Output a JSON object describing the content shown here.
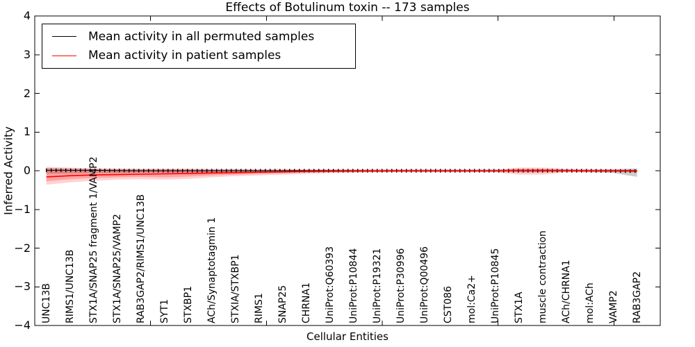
{
  "chart_data": {
    "type": "line",
    "title": "Effects of Botulinum toxin -- 173 samples",
    "xlabel": "Cellular Entities",
    "ylabel": "Inferred Activity",
    "ylim": [
      -4,
      4
    ],
    "ytick_labels": [
      "4",
      "3",
      "2",
      "1",
      "0",
      "−1",
      "−2",
      "−3",
      "−4"
    ],
    "ytick_values": [
      4,
      3,
      2,
      1,
      0,
      -1,
      -2,
      -3,
      -4
    ],
    "xlim": [
      0,
      27
    ],
    "xtick_values": [
      5,
      10,
      15,
      20,
      25
    ],
    "grid": false,
    "categories": [
      "UNC13B",
      "RIMS1/UNC13B",
      "STX1A/SNAP25 fragment 1/VAMP2",
      "STX1A/SNAP25/VAMP2",
      "RAB3GAP2/RIMS1/UNC13B",
      "SYT1",
      "STXBP1",
      "ACh/Synaptotagmin 1",
      "STXIA/STXBP1",
      "RIMS1",
      "SNAP25",
      "CHRNA1",
      "UniProt:Q60393",
      "UniProt:P10844",
      "UniProt:P19321",
      "UniProt:P30996",
      "UniProt:Q00496",
      "CST086",
      "mol:Ca2+",
      "UniProt:P10845",
      "STX1A",
      "muscle contraction",
      "ACh/CHRNA1",
      "mol:ACh",
      "VAMP2",
      "RAB3GAP2"
    ],
    "series": [
      {
        "name": "Mean activity in all permuted samples",
        "color": "#000000",
        "line_width": 1,
        "marker": "tick",
        "values": [
          0.01,
          0.01,
          0.01,
          0.005,
          0,
          0,
          0,
          0,
          0,
          0,
          0,
          0,
          0,
          0,
          0,
          0,
          0,
          0,
          0,
          0,
          0,
          0,
          0,
          0,
          -0.005,
          -0.01
        ],
        "band_upper": [
          0.07,
          0.06,
          0.05,
          0.05,
          0.04,
          0.04,
          0.04,
          0.04,
          0.04,
          0.03,
          0.03,
          0.03,
          0.03,
          0.03,
          0.03,
          0.03,
          0.03,
          0.03,
          0.03,
          0.03,
          0.03,
          0.03,
          0.03,
          0.03,
          0.04,
          0.06
        ],
        "band_lower": [
          -0.08,
          -0.07,
          -0.06,
          -0.06,
          -0.05,
          -0.05,
          -0.05,
          -0.05,
          -0.04,
          -0.04,
          -0.03,
          -0.03,
          -0.03,
          -0.03,
          -0.03,
          -0.03,
          -0.03,
          -0.03,
          -0.03,
          -0.03,
          -0.03,
          -0.03,
          -0.03,
          -0.04,
          -0.06,
          -0.16
        ],
        "band_color": "rgba(90,90,90,0.30)"
      },
      {
        "name": "Mean activity in patient samples",
        "color": "#ff0000",
        "line_width": 1.6,
        "marker": "none",
        "values": [
          -0.16,
          -0.13,
          -0.11,
          -0.1,
          -0.09,
          -0.08,
          -0.07,
          -0.06,
          -0.05,
          -0.04,
          -0.03,
          -0.02,
          -0.015,
          -0.01,
          -0.005,
          0,
          0,
          0,
          0,
          0,
          0.01,
          0.01,
          0.005,
          0,
          0,
          0
        ],
        "band_upper": [
          0.1,
          0.08,
          0.06,
          0.05,
          0.05,
          0.05,
          0.05,
          0.04,
          0.04,
          0.03,
          0.03,
          0.03,
          0.03,
          0.03,
          0.03,
          0.03,
          0.03,
          0.03,
          0.03,
          0.03,
          0.08,
          0.08,
          0.05,
          0.04,
          0.04,
          0.04
        ],
        "band_lower": [
          -0.36,
          -0.3,
          -0.26,
          -0.23,
          -0.22,
          -0.23,
          -0.21,
          -0.17,
          -0.14,
          -0.12,
          -0.1,
          -0.08,
          -0.06,
          -0.05,
          -0.04,
          -0.04,
          -0.04,
          -0.04,
          -0.04,
          -0.04,
          -0.1,
          -0.1,
          -0.04,
          -0.04,
          -0.04,
          -0.05
        ],
        "band_color": "rgba(255,0,0,0.18)",
        "band_inner_upper": [
          0.05,
          0.04,
          0.03,
          0.03,
          0.03,
          0.03,
          0.03,
          0.02,
          0.02,
          0.02,
          0.02,
          0.02,
          0.02,
          0.02,
          0.02,
          0.02,
          0.02,
          0.02,
          0.02,
          0.02,
          0.05,
          0.05,
          0.03,
          0.02,
          0.02,
          0.02
        ],
        "band_inner_lower": [
          -0.27,
          -0.22,
          -0.19,
          -0.17,
          -0.16,
          -0.17,
          -0.15,
          -0.12,
          -0.1,
          -0.08,
          -0.07,
          -0.05,
          -0.04,
          -0.03,
          -0.03,
          -0.03,
          -0.03,
          -0.03,
          -0.03,
          -0.03,
          -0.05,
          -0.05,
          -0.03,
          -0.03,
          -0.03,
          -0.035
        ],
        "band_inner_color": "rgba(255,0,0,0.22)"
      }
    ],
    "legend": {
      "position": "upper left",
      "entries": [
        {
          "label": "Mean activity in all permuted samples",
          "color": "#000000"
        },
        {
          "label": "Mean activity in patient samples",
          "color": "#ff0000"
        }
      ]
    },
    "axis_color": "#000000",
    "background_color": "#ffffff"
  }
}
